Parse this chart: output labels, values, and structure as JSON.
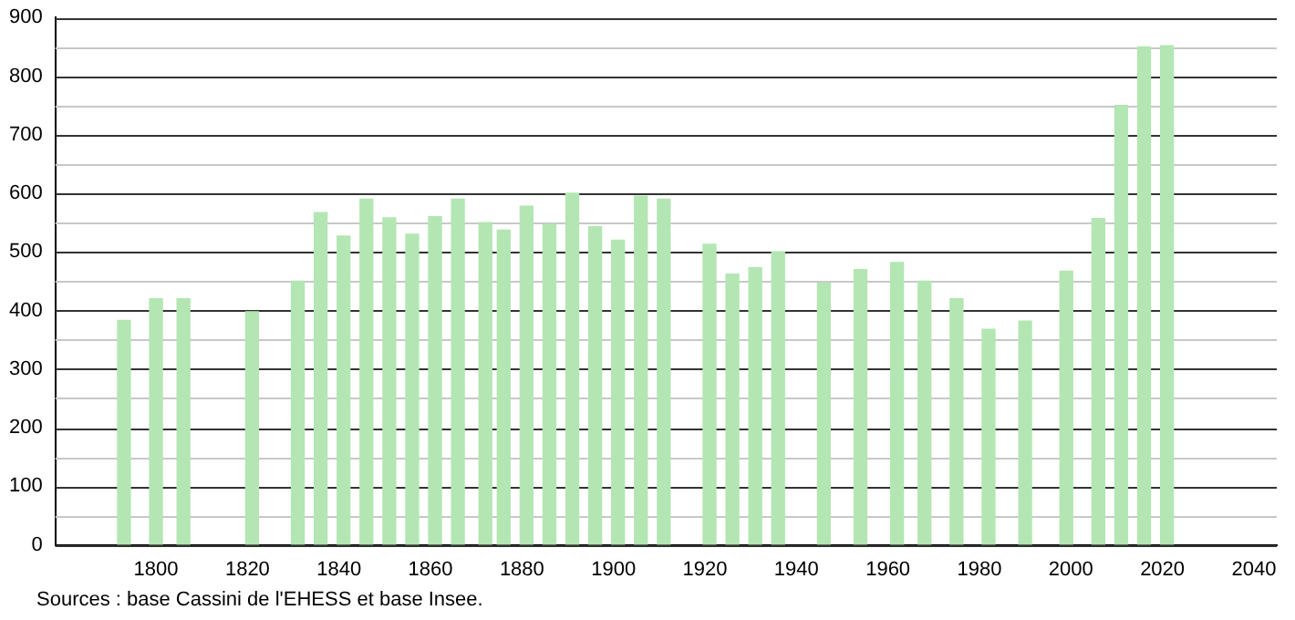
{
  "chart_data": {
    "type": "bar",
    "x": [
      1793,
      1800,
      1806,
      1821,
      1831,
      1836,
      1841,
      1846,
      1851,
      1856,
      1861,
      1866,
      1872,
      1876,
      1881,
      1886,
      1891,
      1896,
      1901,
      1906,
      1911,
      1921,
      1926,
      1931,
      1936,
      1946,
      1954,
      1962,
      1968,
      1975,
      1982,
      1990,
      1999,
      2006,
      2011,
      2016,
      2021
    ],
    "values": [
      383,
      420,
      420,
      398,
      450,
      567,
      527,
      590,
      558,
      530,
      560,
      590,
      550,
      537,
      578,
      547,
      600,
      543,
      520,
      595,
      590,
      513,
      462,
      473,
      500,
      447,
      470,
      482,
      450,
      420,
      368,
      382,
      467,
      557,
      750,
      850,
      852
    ],
    "color": "#b3e6b3",
    "xlim": [
      1778,
      2045
    ],
    "xticks": [
      1800,
      1820,
      1840,
      1860,
      1880,
      1900,
      1920,
      1940,
      1960,
      1980,
      2000,
      2020,
      2040
    ],
    "ylim": [
      0,
      900
    ],
    "yticks": [
      0,
      {
        "value": 50,
        "label": null
      },
      100,
      {
        "value": 150,
        "label": null
      },
      200,
      {
        "value": 250,
        "label": null
      },
      300,
      {
        "value": 350,
        "label": null
      },
      400,
      {
        "value": 450,
        "label": null
      },
      500,
      {
        "value": 550,
        "label": null
      },
      600,
      {
        "value": 650,
        "label": null
      },
      700,
      {
        "value": 750,
        "label": null
      },
      800,
      {
        "value": 850,
        "label": null
      },
      900
    ],
    "grid": "y",
    "legend": false,
    "annotations": [
      "Sources : base Cassini de l'EHESS et base Insee."
    ]
  }
}
